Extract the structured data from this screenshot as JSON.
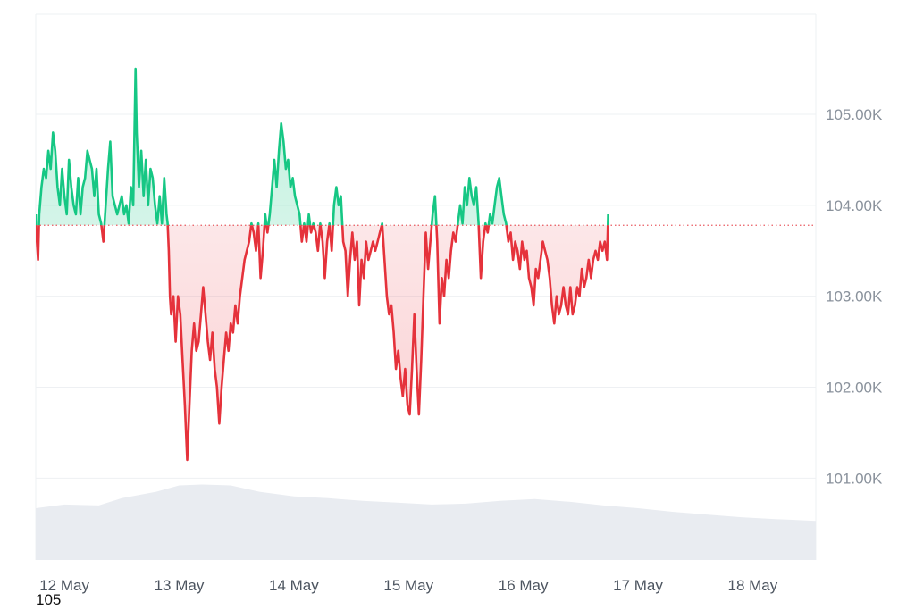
{
  "colors": {
    "up_line": "#16c784",
    "up_fill": "#16c784",
    "down_line": "#e5323b",
    "down_fill": "#ea3943",
    "baseline": "#e5323b",
    "grid": "#eef0f3",
    "volume": "#e9ecf1"
  },
  "footer_text": "105",
  "chart_data": {
    "type": "area",
    "title": "",
    "xlabel": "",
    "ylabel": "",
    "ylim": [
      100.1,
      106.1
    ],
    "xlim": [
      11.75,
      18.55
    ],
    "baseline": 103.78,
    "grid": true,
    "x_ticks": [
      {
        "x": 12,
        "label": "12 May"
      },
      {
        "x": 13,
        "label": "13 May"
      },
      {
        "x": 14,
        "label": "14 May"
      },
      {
        "x": 15,
        "label": "15 May"
      },
      {
        "x": 16,
        "label": "16 May"
      },
      {
        "x": 17,
        "label": "17 May"
      },
      {
        "x": 18,
        "label": "18 May"
      }
    ],
    "y_ticks": [
      {
        "y": 101,
        "label": "101.00K"
      },
      {
        "y": 102,
        "label": "102.00K"
      },
      {
        "y": 103,
        "label": "103.00K"
      },
      {
        "y": 104,
        "label": "104.00K"
      },
      {
        "y": 105,
        "label": "105.00K"
      }
    ],
    "series": [
      {
        "values": [
          [
            11.75,
            103.9
          ],
          [
            11.76,
            103.6
          ],
          [
            11.77,
            103.4
          ],
          [
            11.78,
            103.9
          ],
          [
            11.8,
            104.2
          ],
          [
            11.82,
            104.4
          ],
          [
            11.84,
            104.3
          ],
          [
            11.86,
            104.6
          ],
          [
            11.88,
            104.4
          ],
          [
            11.9,
            104.8
          ],
          [
            11.92,
            104.6
          ],
          [
            11.94,
            104.2
          ],
          [
            11.96,
            104.0
          ],
          [
            11.98,
            104.4
          ],
          [
            12.0,
            104.1
          ],
          [
            12.02,
            103.9
          ],
          [
            12.04,
            104.5
          ],
          [
            12.06,
            104.2
          ],
          [
            12.08,
            104.0
          ],
          [
            12.1,
            103.9
          ],
          [
            12.12,
            104.3
          ],
          [
            12.14,
            103.9
          ],
          [
            12.16,
            104.2
          ],
          [
            12.18,
            104.3
          ],
          [
            12.2,
            104.6
          ],
          [
            12.22,
            104.5
          ],
          [
            12.24,
            104.4
          ],
          [
            12.26,
            104.1
          ],
          [
            12.28,
            104.4
          ],
          [
            12.3,
            103.9
          ],
          [
            12.32,
            103.8
          ],
          [
            12.34,
            103.6
          ],
          [
            12.36,
            104.0
          ],
          [
            12.38,
            104.4
          ],
          [
            12.4,
            104.7
          ],
          [
            12.42,
            104.1
          ],
          [
            12.44,
            104.0
          ],
          [
            12.46,
            103.9
          ],
          [
            12.48,
            104.0
          ],
          [
            12.5,
            104.1
          ],
          [
            12.52,
            103.9
          ],
          [
            12.54,
            104.0
          ],
          [
            12.56,
            103.8
          ],
          [
            12.58,
            104.2
          ],
          [
            12.6,
            104.0
          ],
          [
            12.62,
            105.5
          ],
          [
            12.63,
            104.8
          ],
          [
            12.65,
            104.2
          ],
          [
            12.67,
            104.6
          ],
          [
            12.69,
            104.1
          ],
          [
            12.71,
            104.5
          ],
          [
            12.73,
            104.0
          ],
          [
            12.75,
            104.4
          ],
          [
            12.77,
            104.3
          ],
          [
            12.79,
            104.0
          ],
          [
            12.81,
            103.8
          ],
          [
            12.83,
            104.1
          ],
          [
            12.85,
            103.8
          ],
          [
            12.87,
            104.3
          ],
          [
            12.89,
            103.9
          ],
          [
            12.9,
            103.8
          ],
          [
            12.91,
            103.5
          ],
          [
            12.92,
            103.0
          ],
          [
            12.93,
            102.8
          ],
          [
            12.95,
            103.0
          ],
          [
            12.97,
            102.5
          ],
          [
            12.99,
            103.0
          ],
          [
            13.01,
            102.8
          ],
          [
            13.03,
            102.3
          ],
          [
            13.05,
            101.8
          ],
          [
            13.07,
            101.2
          ],
          [
            13.09,
            101.8
          ],
          [
            13.11,
            102.4
          ],
          [
            13.13,
            102.7
          ],
          [
            13.15,
            102.4
          ],
          [
            13.17,
            102.5
          ],
          [
            13.19,
            102.8
          ],
          [
            13.21,
            103.1
          ],
          [
            13.23,
            102.8
          ],
          [
            13.25,
            102.5
          ],
          [
            13.27,
            102.3
          ],
          [
            13.29,
            102.6
          ],
          [
            13.31,
            102.2
          ],
          [
            13.33,
            102.0
          ],
          [
            13.35,
            101.6
          ],
          [
            13.37,
            102.0
          ],
          [
            13.39,
            102.3
          ],
          [
            13.41,
            102.6
          ],
          [
            13.43,
            102.4
          ],
          [
            13.45,
            102.7
          ],
          [
            13.47,
            102.6
          ],
          [
            13.49,
            102.9
          ],
          [
            13.51,
            102.7
          ],
          [
            13.53,
            103.0
          ],
          [
            13.55,
            103.2
          ],
          [
            13.57,
            103.4
          ],
          [
            13.59,
            103.5
          ],
          [
            13.61,
            103.6
          ],
          [
            13.63,
            103.8
          ],
          [
            13.65,
            103.7
          ],
          [
            13.67,
            103.5
          ],
          [
            13.69,
            103.8
          ],
          [
            13.71,
            103.2
          ],
          [
            13.73,
            103.5
          ],
          [
            13.75,
            103.9
          ],
          [
            13.77,
            103.7
          ],
          [
            13.79,
            103.9
          ],
          [
            13.81,
            104.2
          ],
          [
            13.83,
            104.5
          ],
          [
            13.85,
            104.2
          ],
          [
            13.87,
            104.6
          ],
          [
            13.89,
            104.9
          ],
          [
            13.91,
            104.7
          ],
          [
            13.93,
            104.4
          ],
          [
            13.95,
            104.5
          ],
          [
            13.97,
            104.2
          ],
          [
            13.99,
            104.3
          ],
          [
            14.01,
            104.1
          ],
          [
            14.03,
            104.0
          ],
          [
            14.05,
            103.9
          ],
          [
            14.07,
            103.6
          ],
          [
            14.09,
            103.8
          ],
          [
            14.11,
            103.6
          ],
          [
            14.13,
            103.9
          ],
          [
            14.15,
            103.7
          ],
          [
            14.17,
            103.8
          ],
          [
            14.19,
            103.7
          ],
          [
            14.21,
            103.5
          ],
          [
            14.23,
            103.8
          ],
          [
            14.25,
            103.6
          ],
          [
            14.27,
            103.2
          ],
          [
            14.29,
            103.6
          ],
          [
            14.31,
            103.8
          ],
          [
            14.33,
            103.5
          ],
          [
            14.35,
            104.0
          ],
          [
            14.37,
            104.2
          ],
          [
            14.39,
            104.0
          ],
          [
            14.41,
            104.1
          ],
          [
            14.43,
            103.6
          ],
          [
            14.45,
            103.5
          ],
          [
            14.47,
            103.0
          ],
          [
            14.49,
            103.4
          ],
          [
            14.51,
            103.7
          ],
          [
            14.53,
            103.4
          ],
          [
            14.55,
            103.6
          ],
          [
            14.57,
            102.9
          ],
          [
            14.59,
            103.4
          ],
          [
            14.61,
            103.2
          ],
          [
            14.63,
            103.6
          ],
          [
            14.65,
            103.4
          ],
          [
            14.67,
            103.5
          ],
          [
            14.69,
            103.6
          ],
          [
            14.71,
            103.5
          ],
          [
            14.73,
            103.6
          ],
          [
            14.75,
            103.7
          ],
          [
            14.77,
            103.8
          ],
          [
            14.79,
            103.4
          ],
          [
            14.81,
            103.0
          ],
          [
            14.83,
            102.8
          ],
          [
            14.85,
            102.9
          ],
          [
            14.87,
            102.6
          ],
          [
            14.89,
            102.2
          ],
          [
            14.91,
            102.4
          ],
          [
            14.93,
            102.1
          ],
          [
            14.95,
            101.9
          ],
          [
            14.97,
            102.2
          ],
          [
            14.99,
            101.8
          ],
          [
            15.01,
            101.7
          ],
          [
            15.03,
            102.2
          ],
          [
            15.05,
            102.8
          ],
          [
            15.07,
            102.2
          ],
          [
            15.09,
            101.7
          ],
          [
            15.11,
            102.3
          ],
          [
            15.13,
            103.0
          ],
          [
            15.15,
            103.7
          ],
          [
            15.17,
            103.3
          ],
          [
            15.19,
            103.6
          ],
          [
            15.21,
            103.9
          ],
          [
            15.23,
            104.1
          ],
          [
            15.25,
            103.6
          ],
          [
            15.27,
            102.7
          ],
          [
            15.29,
            103.2
          ],
          [
            15.31,
            103.0
          ],
          [
            15.33,
            103.4
          ],
          [
            15.35,
            103.2
          ],
          [
            15.37,
            103.5
          ],
          [
            15.39,
            103.7
          ],
          [
            15.41,
            103.6
          ],
          [
            15.43,
            103.8
          ],
          [
            15.45,
            104.0
          ],
          [
            15.47,
            103.8
          ],
          [
            15.49,
            104.2
          ],
          [
            15.51,
            104.0
          ],
          [
            15.53,
            104.3
          ],
          [
            15.55,
            104.1
          ],
          [
            15.57,
            104.0
          ],
          [
            15.59,
            104.2
          ],
          [
            15.61,
            103.8
          ],
          [
            15.63,
            103.2
          ],
          [
            15.65,
            103.6
          ],
          [
            15.67,
            103.8
          ],
          [
            15.69,
            103.7
          ],
          [
            15.71,
            103.9
          ],
          [
            15.73,
            103.8
          ],
          [
            15.75,
            104.0
          ],
          [
            15.77,
            104.2
          ],
          [
            15.79,
            104.3
          ],
          [
            15.81,
            104.1
          ],
          [
            15.83,
            103.9
          ],
          [
            15.85,
            103.8
          ],
          [
            15.87,
            103.6
          ],
          [
            15.89,
            103.7
          ],
          [
            15.91,
            103.4
          ],
          [
            15.93,
            103.6
          ],
          [
            15.95,
            103.5
          ],
          [
            15.97,
            103.3
          ],
          [
            15.99,
            103.6
          ],
          [
            16.01,
            103.4
          ],
          [
            16.03,
            103.5
          ],
          [
            16.05,
            103.2
          ],
          [
            16.07,
            103.1
          ],
          [
            16.09,
            102.9
          ],
          [
            16.11,
            103.3
          ],
          [
            16.13,
            103.2
          ],
          [
            16.15,
            103.4
          ],
          [
            16.17,
            103.6
          ],
          [
            16.19,
            103.5
          ],
          [
            16.21,
            103.4
          ],
          [
            16.23,
            103.2
          ],
          [
            16.25,
            102.9
          ],
          [
            16.27,
            102.7
          ],
          [
            16.29,
            103.0
          ],
          [
            16.31,
            102.8
          ],
          [
            16.33,
            102.9
          ],
          [
            16.35,
            103.1
          ],
          [
            16.37,
            102.9
          ],
          [
            16.39,
            102.8
          ],
          [
            16.41,
            103.1
          ],
          [
            16.43,
            102.8
          ],
          [
            16.45,
            102.9
          ],
          [
            16.47,
            103.1
          ],
          [
            16.49,
            103.0
          ],
          [
            16.51,
            103.3
          ],
          [
            16.53,
            103.1
          ],
          [
            16.55,
            103.2
          ],
          [
            16.57,
            103.4
          ],
          [
            16.59,
            103.2
          ],
          [
            16.61,
            103.4
          ],
          [
            16.63,
            103.5
          ],
          [
            16.65,
            103.4
          ],
          [
            16.67,
            103.6
          ],
          [
            16.69,
            103.5
          ],
          [
            16.71,
            103.6
          ],
          [
            16.73,
            103.4
          ],
          [
            16.74,
            103.9
          ]
        ]
      },
      {
        "name": "volume",
        "values": [
          [
            11.75,
            100.67
          ],
          [
            12.0,
            100.71
          ],
          [
            12.3,
            100.7
          ],
          [
            12.5,
            100.78
          ],
          [
            12.8,
            100.85
          ],
          [
            13.0,
            100.92
          ],
          [
            13.2,
            100.93
          ],
          [
            13.45,
            100.92
          ],
          [
            13.7,
            100.85
          ],
          [
            14.0,
            100.8
          ],
          [
            14.3,
            100.78
          ],
          [
            14.6,
            100.75
          ],
          [
            14.9,
            100.73
          ],
          [
            15.2,
            100.71
          ],
          [
            15.5,
            100.72
          ],
          [
            15.8,
            100.75
          ],
          [
            16.1,
            100.77
          ],
          [
            16.4,
            100.74
          ],
          [
            16.7,
            100.7
          ],
          [
            17.0,
            100.67
          ],
          [
            17.3,
            100.63
          ],
          [
            17.6,
            100.6
          ],
          [
            17.9,
            100.57
          ],
          [
            18.2,
            100.55
          ],
          [
            18.55,
            100.53
          ]
        ]
      }
    ]
  }
}
